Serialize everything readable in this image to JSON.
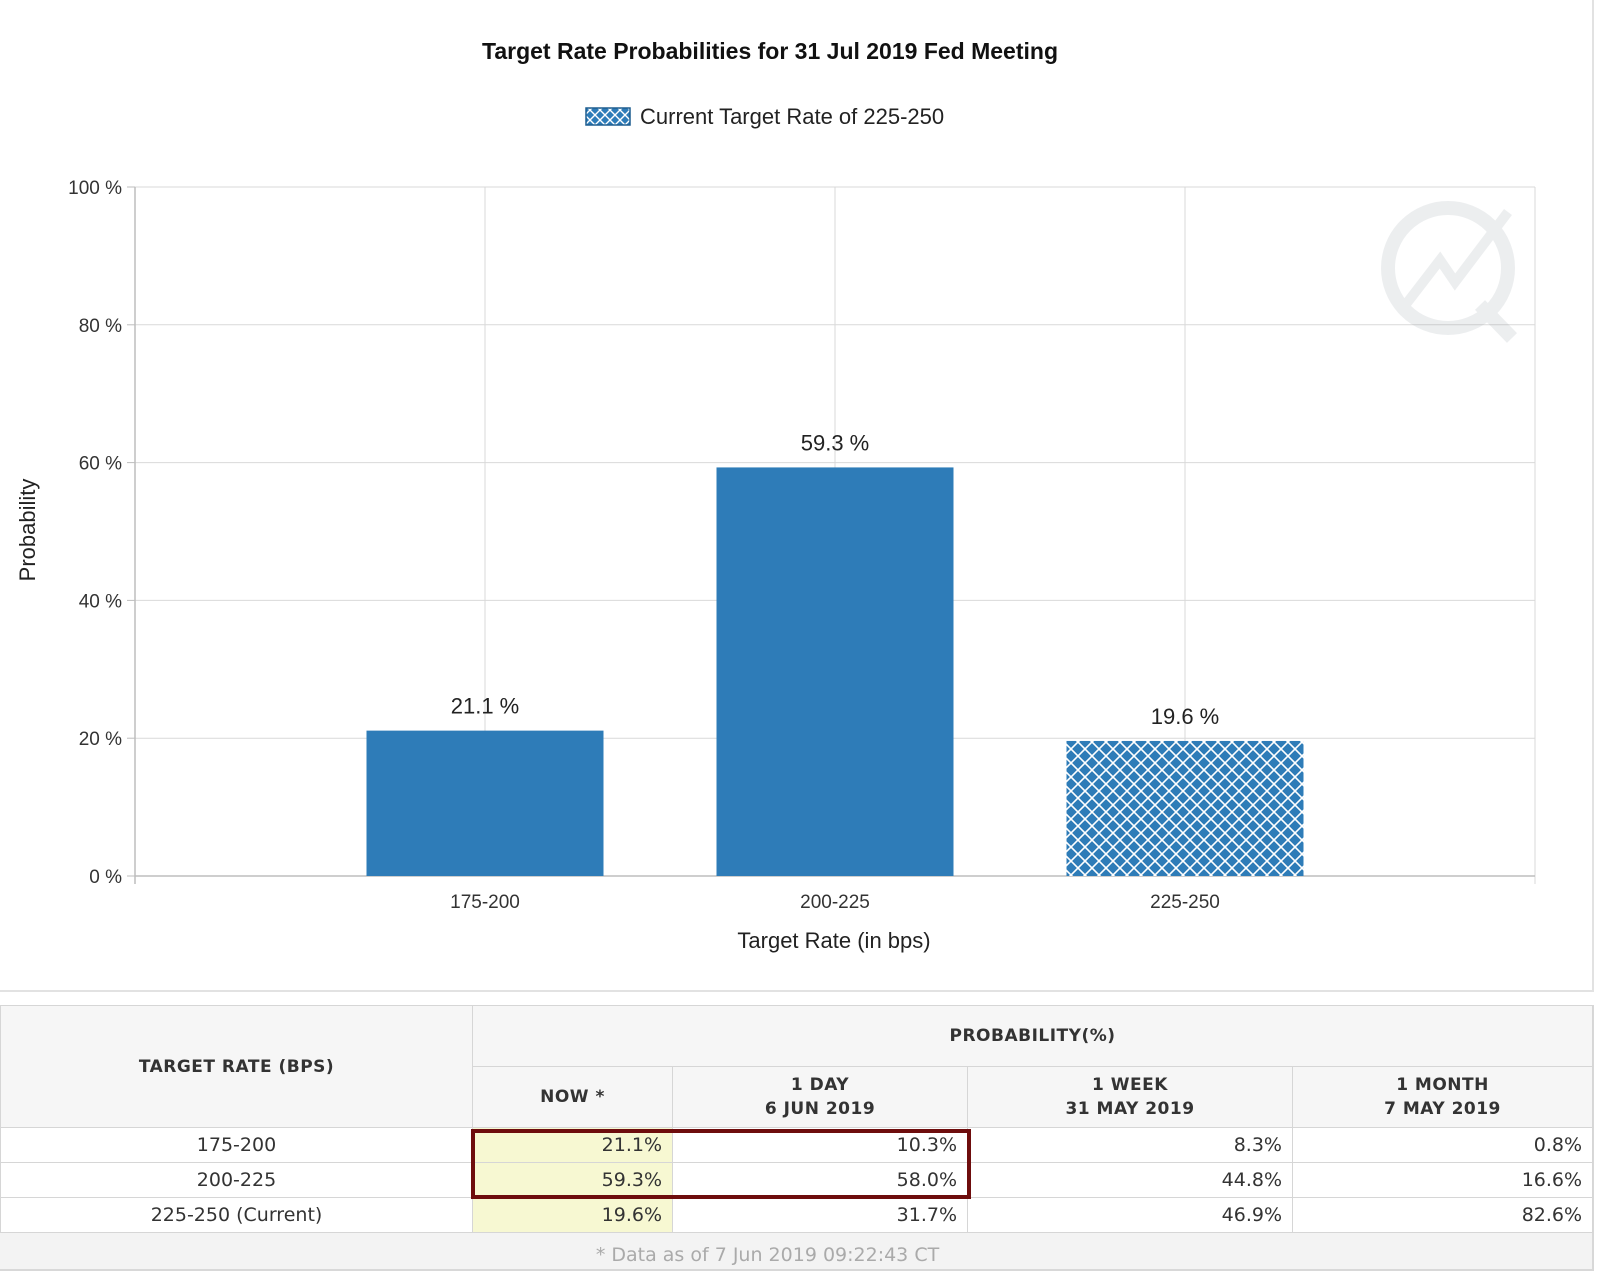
{
  "chart_data": {
    "type": "bar",
    "title": "Target Rate Probabilities for 31 Jul 2019 Fed Meeting",
    "legend": {
      "label": "Current Target Rate of 225-250",
      "position": "top-center"
    },
    "xlabel": "Target Rate (in bps)",
    "ylabel": "Probability",
    "categories": [
      "175-200",
      "200-225",
      "225-250"
    ],
    "values": [
      21.1,
      59.3,
      19.6
    ],
    "data_labels": [
      "21.1 %",
      "59.3 %",
      "19.6 %"
    ],
    "highlighted_category": "225-250",
    "ylim": [
      0,
      100
    ],
    "yticks": [
      0,
      20,
      40,
      60,
      80,
      100
    ],
    "ytick_labels": [
      "0 %",
      "20 %",
      "40 %",
      "60 %",
      "80 %",
      "100 %"
    ],
    "grid": true,
    "colors": {
      "bar": "#2e7cb8",
      "hatch_bg": "#2e7cb8",
      "hatch_line": "#ffffff",
      "grid": "#d9d9d9",
      "axis": "#bdbdbd"
    }
  },
  "table": {
    "rate_header": "TARGET RATE (BPS)",
    "prob_header": "PROBABILITY(%)",
    "columns": [
      {
        "line1": "NOW *",
        "line2": ""
      },
      {
        "line1": "1 DAY",
        "line2": "6 JUN 2019"
      },
      {
        "line1": "1 WEEK",
        "line2": "31 MAY 2019"
      },
      {
        "line1": "1 MONTH",
        "line2": "7 MAY 2019"
      }
    ],
    "rows": [
      {
        "rate": "175-200",
        "now": "21.1%",
        "day": "10.3%",
        "week": "8.3%",
        "month": "0.8%"
      },
      {
        "rate": "200-225",
        "now": "59.3%",
        "day": "58.0%",
        "week": "44.8%",
        "month": "16.6%"
      },
      {
        "rate": "225-250 (Current)",
        "now": "19.6%",
        "day": "31.7%",
        "week": "46.9%",
        "month": "82.6%"
      }
    ],
    "footnote": "* Data as of 7 Jun 2019 09:22:43 CT",
    "colors": {
      "now_bg": "#f7f8d2",
      "highlight_border": "#6e0d0d"
    }
  }
}
